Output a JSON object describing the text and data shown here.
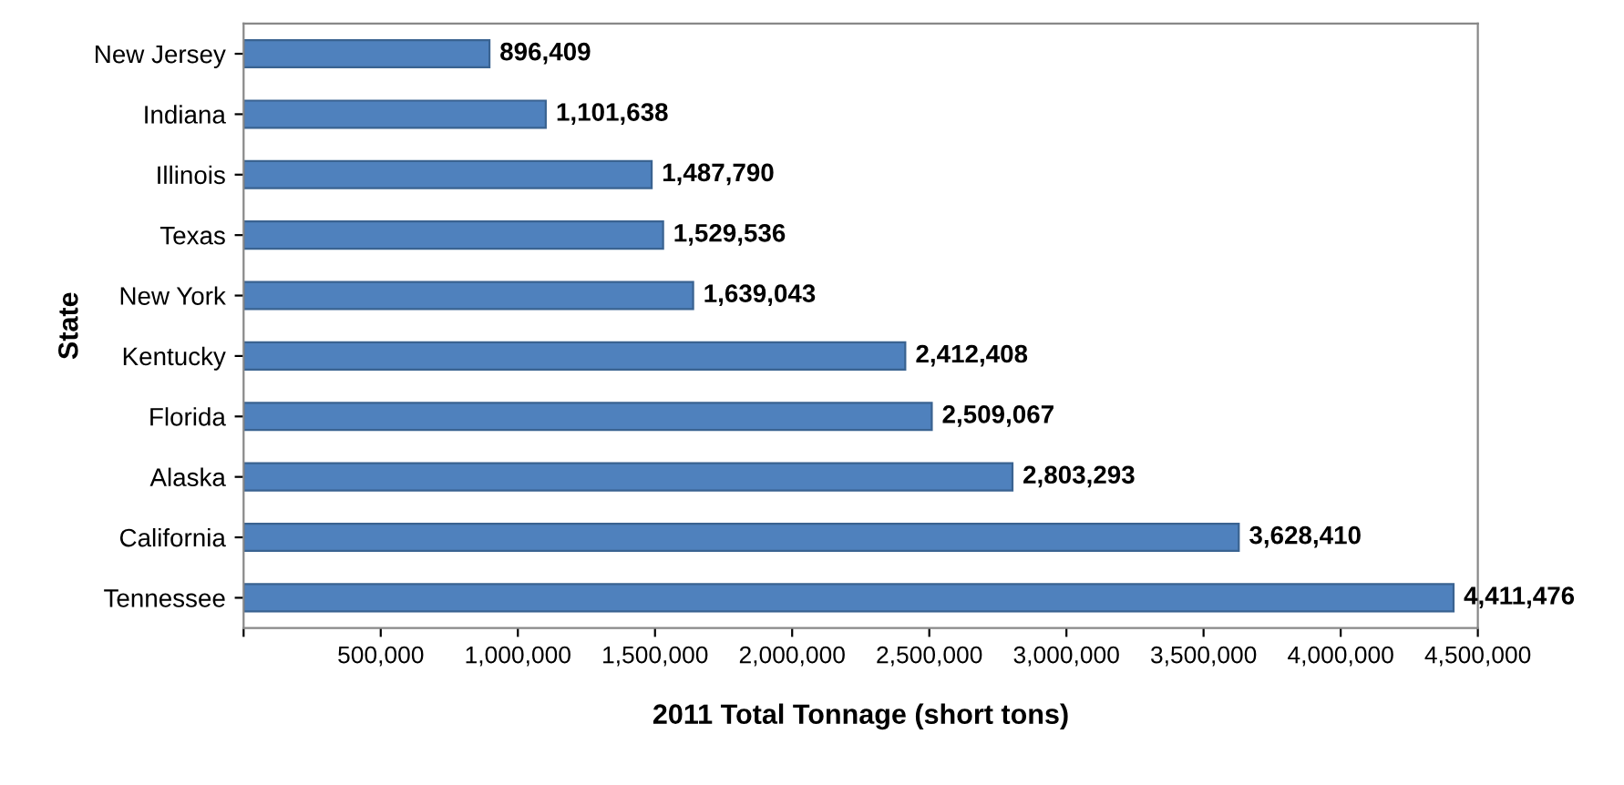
{
  "chart_data": {
    "type": "bar",
    "orientation": "horizontal",
    "xlabel": "2011 Total Tonnage (short tons)",
    "ylabel": "State",
    "categories": [
      "New Jersey",
      "Indiana",
      "Illinois",
      "Texas",
      "New York",
      "Kentucky",
      "Florida",
      "Alaska",
      "California",
      "Tennessee"
    ],
    "values": [
      896409,
      1101638,
      1487790,
      1529536,
      1639043,
      2412408,
      2509067,
      2803293,
      3628410,
      4411476
    ],
    "color": "#4f81bd",
    "xlim": [
      0,
      4500000
    ],
    "xticks": [
      {
        "value": 0,
        "label": null
      },
      {
        "value": 500000,
        "label": "500,000"
      },
      {
        "value": 1000000,
        "label": "1,000,000"
      },
      {
        "value": 1500000,
        "label": "1,500,000"
      },
      {
        "value": 2000000,
        "label": "2,000,000"
      },
      {
        "value": 2500000,
        "label": "2,500,000"
      },
      {
        "value": 3000000,
        "label": "3,000,000"
      },
      {
        "value": 3500000,
        "label": "3,500,000"
      },
      {
        "value": 4000000,
        "label": "4,000,000"
      },
      {
        "value": 4500000,
        "label": "4,500,000"
      }
    ],
    "value_labels": [
      "896,409",
      "1,101,638",
      "1,487,790",
      "1,529,536",
      "1,639,043",
      "2,412,408",
      "2,509,067",
      "2,803,293",
      "3,628,410",
      "4,411,476"
    ],
    "grid": false,
    "legend": false
  }
}
